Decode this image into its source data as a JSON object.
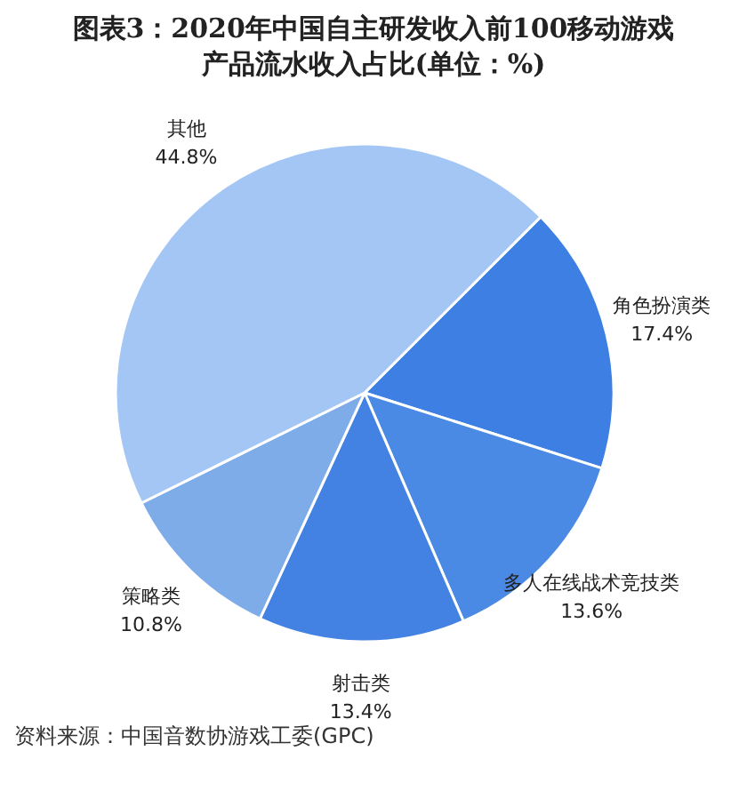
{
  "chart_data": {
    "type": "pie",
    "title": "图表3：2020年中国自主研发收入前100移动游戏产品流水收入占比(单位：%)",
    "categories": [
      "角色扮演类",
      "多人在线战术竞技类",
      "射击类",
      "策略类",
      "其他"
    ],
    "values": [
      17.4,
      13.6,
      13.4,
      10.8,
      44.8
    ],
    "value_labels": [
      "17.4%",
      "13.6%",
      "13.4%",
      "10.8%",
      "44.8%"
    ],
    "colors": [
      "#3d7fe3",
      "#4a89e4",
      "#4382e2",
      "#7eace9",
      "#a4c6f4"
    ],
    "annotations": [
      "资料来源：中国音数协游戏工委(GPC)"
    ]
  }
}
